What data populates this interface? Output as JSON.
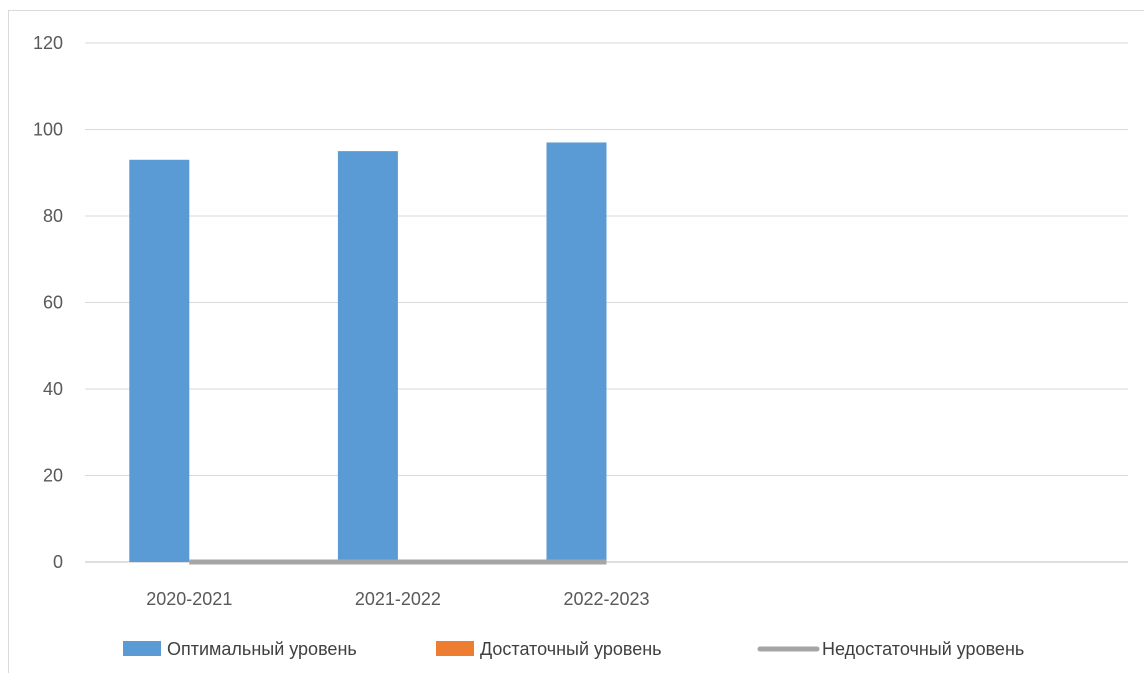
{
  "chart_data": {
    "type": "bar",
    "categories": [
      "2020-2021",
      "2021-2022",
      "2022-2023"
    ],
    "series": [
      {
        "name": "Оптимальный уровень",
        "type": "bar",
        "color": "#5b9bd5",
        "values": [
          93,
          95,
          97
        ]
      },
      {
        "name": "Достаточный уровень",
        "type": "bar",
        "color": "#ed7d31",
        "values": [
          0,
          0,
          0
        ]
      },
      {
        "name": "Недостаточный уровень",
        "type": "line",
        "color": "#a5a5a5",
        "values": [
          0,
          0,
          0
        ]
      }
    ],
    "category_slots": 5,
    "ylim": [
      0,
      120
    ],
    "yticks": [
      0,
      20,
      40,
      60,
      80,
      100,
      120
    ],
    "grid": true,
    "legend_position": "bottom",
    "title": "",
    "xlabel": "",
    "ylabel": ""
  }
}
